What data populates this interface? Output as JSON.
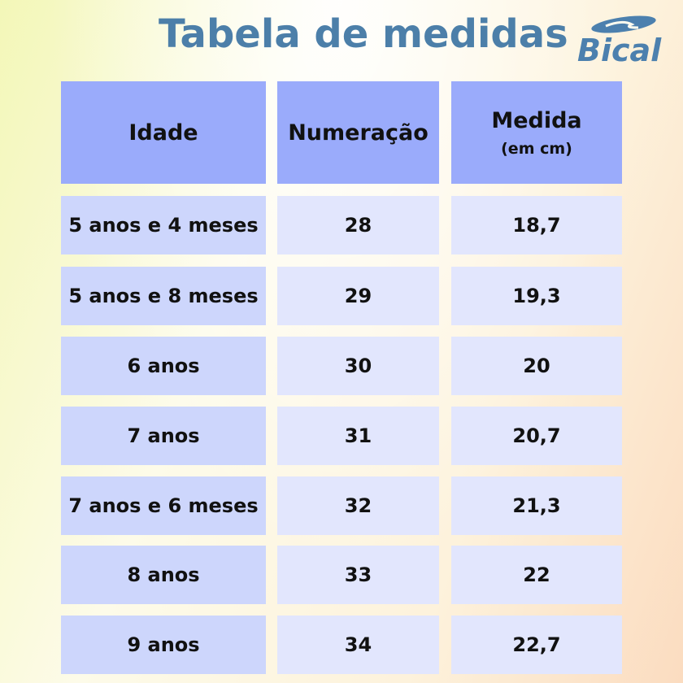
{
  "title": "Tabela de medidas",
  "logo": {
    "text": "Bical",
    "color": "#4c80ae"
  },
  "colors": {
    "header": "#9aabfb",
    "age_column": "#cdd6fc",
    "value_columns": "#e2e6fd",
    "title": "#4c7fa9"
  },
  "table": {
    "headers": {
      "age": "Idade",
      "size": "Numeração",
      "measure": "Medida",
      "measure_unit": "(em cm)"
    },
    "rows": [
      {
        "age": "5 anos e 4 meses",
        "size": "28",
        "measure": "18,7"
      },
      {
        "age": "5 anos e 8 meses",
        "size": "29",
        "measure": "19,3"
      },
      {
        "age": "6 anos",
        "size": "30",
        "measure": "20"
      },
      {
        "age": "7 anos",
        "size": "31",
        "measure": "20,7"
      },
      {
        "age": "7 anos e 6 meses",
        "size": "32",
        "measure": "21,3"
      },
      {
        "age": "8 anos",
        "size": "33",
        "measure": "22"
      },
      {
        "age": "9 anos",
        "size": "34",
        "measure": "22,7"
      }
    ]
  }
}
